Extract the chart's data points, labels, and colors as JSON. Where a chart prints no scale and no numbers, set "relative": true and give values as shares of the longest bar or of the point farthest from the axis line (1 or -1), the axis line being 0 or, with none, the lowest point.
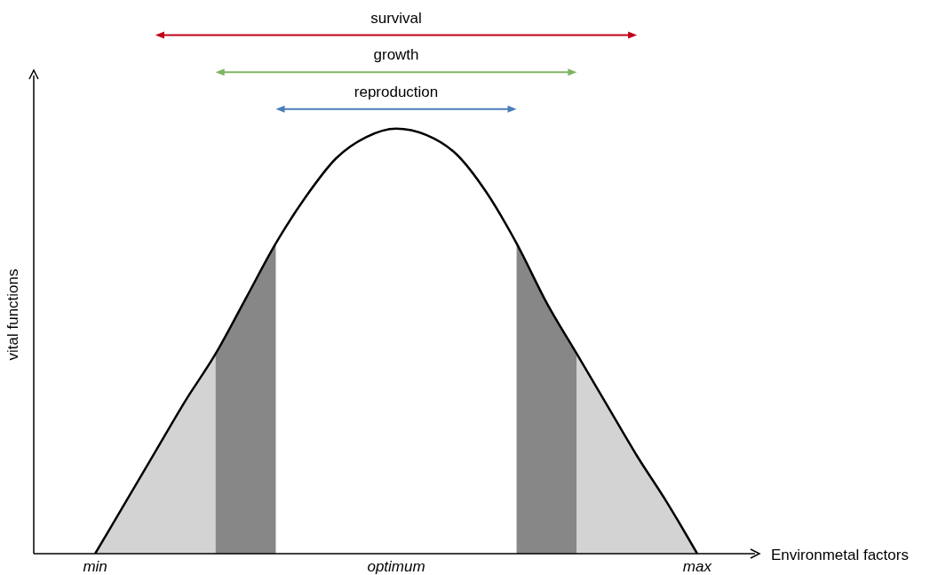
{
  "chart_data": {
    "type": "line",
    "relative": true,
    "xlabel": "Environmetal factors",
    "ylabel": "vital functions",
    "categories": [
      "min",
      null,
      null,
      null,
      null,
      null,
      null,
      null,
      null,
      null,
      "optimum",
      null,
      null,
      null,
      null,
      null,
      null,
      null,
      null,
      null,
      "max"
    ],
    "tick_labels": "x",
    "marker": "none",
    "line_style": "solid",
    "series": [
      {
        "type": "area",
        "color": "#d3d3d3",
        "values": [
          0,
          0.12,
          0.24,
          0.36,
          0.47,
          null,
          null,
          null,
          null,
          null,
          null,
          null,
          null,
          null,
          null,
          null,
          null,
          null,
          null,
          null,
          null
        ]
      },
      {
        "type": "area",
        "color": "#878787",
        "values": [
          null,
          null,
          null,
          null,
          0.47,
          0.6,
          0.73,
          null,
          null,
          null,
          null,
          null,
          null,
          null,
          null,
          null,
          null,
          null,
          null,
          null,
          null
        ]
      },
      {
        "type": "area",
        "color": "#878787",
        "values": [
          null,
          null,
          null,
          null,
          null,
          null,
          null,
          null,
          null,
          null,
          null,
          null,
          null,
          null,
          0.73,
          0.59,
          0.47,
          null,
          null,
          null,
          null
        ]
      },
      {
        "type": "area",
        "color": "#d3d3d3",
        "values": [
          null,
          null,
          null,
          null,
          null,
          null,
          null,
          null,
          null,
          null,
          null,
          null,
          null,
          null,
          null,
          null,
          0.47,
          0.35,
          0.23,
          0.12,
          0
        ]
      },
      {
        "color": "#000000",
        "values": [
          0,
          0.12,
          0.24,
          0.36,
          0.47,
          0.6,
          0.73,
          0.84,
          0.93,
          0.98,
          1,
          0.985,
          0.94,
          0.85,
          0.73,
          0.59,
          0.47,
          0.35,
          0.23,
          0.12,
          0
        ]
      }
    ],
    "annotations": [
      "survival",
      "growth",
      "reproduction"
    ]
  }
}
